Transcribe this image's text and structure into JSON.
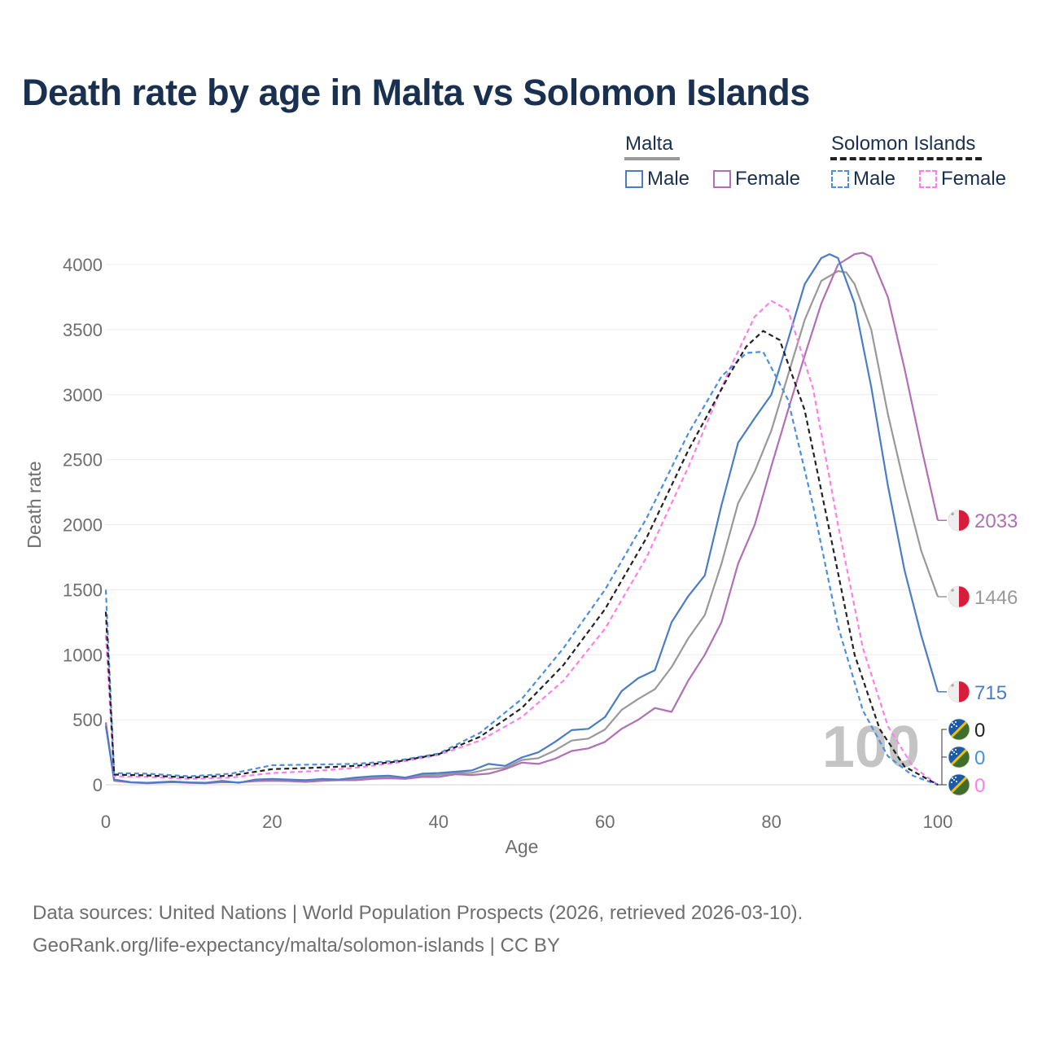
{
  "title": "Death rate by age in Malta vs Solomon Islands",
  "legend": {
    "malta": {
      "label": "Malta",
      "male": "Male",
      "female": "Female"
    },
    "solomon": {
      "label": "Solomon Islands",
      "male": "Male",
      "female": "Female"
    }
  },
  "colors": {
    "malta_male": "#4a7cc7",
    "malta_female": "#b06fb6",
    "malta_total": "#999999",
    "solomon_male": "#4a8fe0",
    "solomon_female": "#ff7ee8",
    "solomon_total": "#222222",
    "title": "#1a3050"
  },
  "chart_data": {
    "type": "line",
    "xlabel": "Age",
    "ylabel": "Death rate",
    "xlim": [
      0,
      100
    ],
    "ylim": [
      0,
      4000
    ],
    "xticks": [
      0,
      20,
      40,
      60,
      80,
      100
    ],
    "yticks": [
      0,
      500,
      1000,
      1500,
      2000,
      2500,
      3000,
      3500,
      4000
    ],
    "age_marker": "100",
    "series": [
      {
        "name": "Malta Male",
        "key": "malta_male",
        "dashed": false,
        "end_value": 715,
        "x": [
          0,
          1,
          3,
          5,
          8,
          10,
          12,
          14,
          16,
          18,
          20,
          22,
          24,
          26,
          28,
          30,
          32,
          34,
          36,
          38,
          40,
          42,
          44,
          46,
          48,
          50,
          52,
          54,
          56,
          58,
          60,
          62,
          64,
          66,
          68,
          70,
          72,
          74,
          76,
          78,
          80,
          82,
          84,
          86,
          87,
          88,
          90,
          92,
          94,
          96,
          98,
          100
        ],
        "y": [
          450,
          40,
          20,
          15,
          25,
          18,
          15,
          30,
          15,
          40,
          45,
          40,
          35,
          45,
          40,
          55,
          65,
          70,
          55,
          85,
          90,
          100,
          110,
          160,
          145,
          210,
          250,
          330,
          420,
          430,
          520,
          720,
          820,
          880,
          1250,
          1450,
          1610,
          2150,
          2630,
          2820,
          3000,
          3420,
          3850,
          4050,
          4080,
          4050,
          3700,
          3060,
          2300,
          1650,
          1150,
          715
        ]
      },
      {
        "name": "Malta Female",
        "key": "malta_female",
        "dashed": false,
        "end_value": 2033,
        "x": [
          0,
          1,
          3,
          5,
          8,
          10,
          12,
          14,
          16,
          18,
          20,
          22,
          24,
          26,
          28,
          30,
          32,
          34,
          36,
          38,
          40,
          42,
          44,
          46,
          48,
          50,
          52,
          54,
          56,
          58,
          60,
          62,
          64,
          66,
          68,
          70,
          72,
          74,
          76,
          78,
          80,
          82,
          84,
          86,
          88,
          90,
          91,
          92,
          94,
          96,
          98,
          100
        ],
        "y": [
          480,
          30,
          18,
          12,
          20,
          15,
          12,
          20,
          18,
          28,
          30,
          28,
          22,
          30,
          35,
          35,
          45,
          50,
          45,
          60,
          60,
          80,
          75,
          85,
          120,
          170,
          160,
          200,
          260,
          280,
          330,
          430,
          500,
          590,
          560,
          800,
          1000,
          1250,
          1700,
          2000,
          2450,
          2880,
          3300,
          3700,
          4000,
          4080,
          4090,
          4060,
          3750,
          3200,
          2600,
          2033
        ]
      },
      {
        "name": "Malta Total",
        "key": "malta_total",
        "dashed": false,
        "end_value": 1446,
        "x": [
          0,
          1,
          3,
          5,
          8,
          10,
          12,
          14,
          16,
          18,
          20,
          22,
          24,
          26,
          28,
          30,
          32,
          34,
          36,
          38,
          40,
          42,
          44,
          46,
          48,
          50,
          52,
          54,
          56,
          58,
          60,
          62,
          64,
          66,
          68,
          70,
          72,
          74,
          76,
          78,
          80,
          82,
          84,
          86,
          88,
          89,
          90,
          92,
          94,
          96,
          98,
          100
        ],
        "y": [
          465,
          35,
          19,
          14,
          22,
          16,
          13,
          25,
          17,
          34,
          38,
          34,
          28,
          38,
          38,
          45,
          55,
          60,
          50,
          72,
          75,
          90,
          92,
          120,
          130,
          190,
          205,
          265,
          340,
          355,
          425,
          575,
          660,
          735,
          905,
          1125,
          1305,
          1700,
          2165,
          2410,
          2725,
          3150,
          3575,
          3875,
          3950,
          3940,
          3850,
          3500,
          2850,
          2300,
          1800,
          1446
        ]
      },
      {
        "name": "Solomon Islands Male",
        "key": "solomon_male",
        "dashed": true,
        "end_value": 0,
        "x": [
          0,
          1,
          5,
          10,
          15,
          20,
          25,
          30,
          35,
          40,
          45,
          50,
          55,
          60,
          65,
          70,
          74,
          77,
          79,
          82,
          85,
          88,
          91,
          94,
          97,
          100
        ],
        "y": [
          1500,
          90,
          85,
          65,
          85,
          150,
          155,
          160,
          185,
          240,
          400,
          660,
          1050,
          1500,
          2050,
          2700,
          3140,
          3320,
          3330,
          2960,
          2150,
          1220,
          570,
          220,
          70,
          0
        ]
      },
      {
        "name": "Solomon Islands Female",
        "key": "solomon_female",
        "dashed": true,
        "end_value": 0,
        "x": [
          0,
          1,
          5,
          10,
          15,
          20,
          25,
          30,
          35,
          40,
          45,
          50,
          55,
          60,
          65,
          70,
          75,
          78,
          80,
          82,
          85,
          88,
          91,
          94,
          97,
          100
        ],
        "y": [
          1150,
          65,
          60,
          45,
          55,
          90,
          105,
          130,
          170,
          230,
          340,
          520,
          800,
          1200,
          1750,
          2440,
          3200,
          3600,
          3720,
          3650,
          3050,
          2000,
          1050,
          450,
          140,
          0
        ]
      },
      {
        "name": "Solomon Islands Total",
        "key": "solomon_total",
        "dashed": true,
        "end_value": 0,
        "x": [
          0,
          1,
          5,
          10,
          15,
          20,
          25,
          30,
          35,
          40,
          45,
          50,
          55,
          60,
          65,
          70,
          75,
          77,
          79,
          81,
          84,
          87,
          90,
          93,
          96,
          100
        ],
        "y": [
          1330,
          78,
          72,
          55,
          70,
          120,
          130,
          145,
          178,
          235,
          370,
          590,
          920,
          1350,
          1900,
          2570,
          3160,
          3370,
          3490,
          3420,
          2880,
          1950,
          1000,
          430,
          140,
          0
        ]
      }
    ]
  },
  "source_line1": "Data sources: United Nations | World Population Prospects (2026, retrieved 2026-03-10).",
  "source_line2": "GeoRank.org/life-expectancy/malta/solomon-islands | CC BY"
}
